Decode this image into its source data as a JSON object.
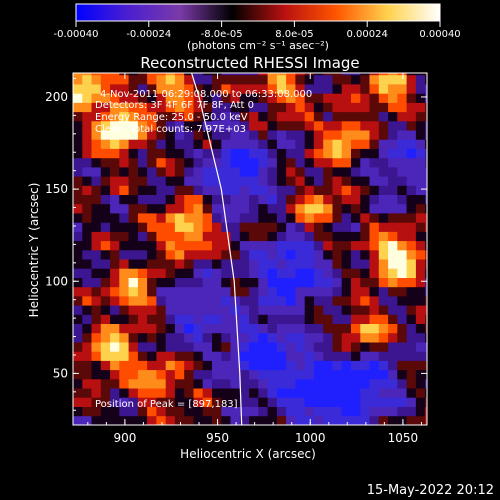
{
  "chart_data": {
    "type": "heatmap",
    "title": "Reconstructed RHESSI Image",
    "xlabel": "Heliocentric X (arcsec)",
    "ylabel": "Heliocentric Y (arcsec)",
    "xlim": [
      872,
      1063
    ],
    "ylim": [
      22,
      213
    ],
    "x_ticks": [
      900,
      950,
      1000,
      1050
    ],
    "y_ticks": [
      50,
      100,
      150,
      200
    ],
    "colorbar": {
      "label": "(photons cm⁻² s⁻¹ asec⁻²)",
      "range": [
        -0.0004,
        0.0004
      ],
      "tick_labels": [
        "-0.00040",
        "-0.00024",
        "-8.0e-05",
        "8.0e-05",
        "0.00024",
        "0.00040"
      ],
      "colors": [
        "#0000ff",
        "#4b1fcf",
        "#7a3aa8",
        "#000000",
        "#b81010",
        "#ff5500",
        "#ffd24d",
        "#ffffff"
      ]
    },
    "annotations": [
      "4-Nov-2011 06:29:08.000 to 06:33:08.000",
      "Detectors: 3F 4F 6F 7F 8F, Att 0",
      "Energy Range: 25.0 - 50.0 keV",
      "Clean. Total counts: 7.97E+03"
    ],
    "peak_label": "Position of Peak = [897,183]",
    "limb_curve": [
      [
        963,
        22
      ],
      [
        962,
        50
      ],
      [
        959,
        100
      ],
      [
        952,
        150
      ],
      [
        940,
        200
      ],
      [
        936,
        213
      ]
    ],
    "hot_regions": [
      {
        "x": 897,
        "y": 183,
        "strength": 1.0
      },
      {
        "x": 878,
        "y": 208,
        "strength": 0.8
      },
      {
        "x": 925,
        "y": 205,
        "strength": 0.6
      },
      {
        "x": 933,
        "y": 128,
        "strength": 0.75
      },
      {
        "x": 905,
        "y": 95,
        "strength": 0.55
      },
      {
        "x": 893,
        "y": 62,
        "strength": 0.7
      },
      {
        "x": 918,
        "y": 45,
        "strength": 0.5
      },
      {
        "x": 1047,
        "y": 113,
        "strength": 0.95
      },
      {
        "x": 1018,
        "y": 177,
        "strength": 0.6
      },
      {
        "x": 1043,
        "y": 203,
        "strength": 0.55
      },
      {
        "x": 1003,
        "y": 140,
        "strength": 0.45
      },
      {
        "x": 1030,
        "y": 72,
        "strength": 0.55
      },
      {
        "x": 985,
        "y": 205,
        "strength": 0.5
      }
    ],
    "cold_regions": [
      {
        "x": 962,
        "y": 160,
        "strength": 0.85
      },
      {
        "x": 990,
        "y": 105,
        "strength": 0.9
      },
      {
        "x": 1005,
        "y": 40,
        "strength": 1.0
      },
      {
        "x": 975,
        "y": 60,
        "strength": 0.85
      },
      {
        "x": 1030,
        "y": 45,
        "strength": 0.8
      },
      {
        "x": 940,
        "y": 85,
        "strength": 0.55
      },
      {
        "x": 1050,
        "y": 165,
        "strength": 0.5
      }
    ]
  },
  "footer": {
    "timestamp": "15-May-2022 20:12"
  }
}
